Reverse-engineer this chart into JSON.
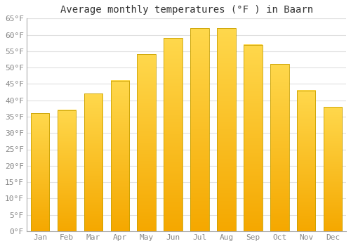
{
  "title": "Average monthly temperatures (°F ) in Baarn",
  "months": [
    "Jan",
    "Feb",
    "Mar",
    "Apr",
    "May",
    "Jun",
    "Jul",
    "Aug",
    "Sep",
    "Oct",
    "Nov",
    "Dec"
  ],
  "values": [
    36,
    37,
    42,
    46,
    54,
    59,
    62,
    62,
    57,
    51,
    43,
    38
  ],
  "bar_color_bottom": "#F5A800",
  "bar_color_top": "#FFD84C",
  "bar_edge_color": "#B8860B",
  "ylim": [
    0,
    65
  ],
  "yticks": [
    0,
    5,
    10,
    15,
    20,
    25,
    30,
    35,
    40,
    45,
    50,
    55,
    60,
    65
  ],
  "background_color": "#FFFFFF",
  "plot_bg_color": "#FFFFFF",
  "grid_color": "#E0E0E0",
  "title_fontsize": 10,
  "tick_fontsize": 8,
  "tick_color": "#888888",
  "title_color": "#333333"
}
